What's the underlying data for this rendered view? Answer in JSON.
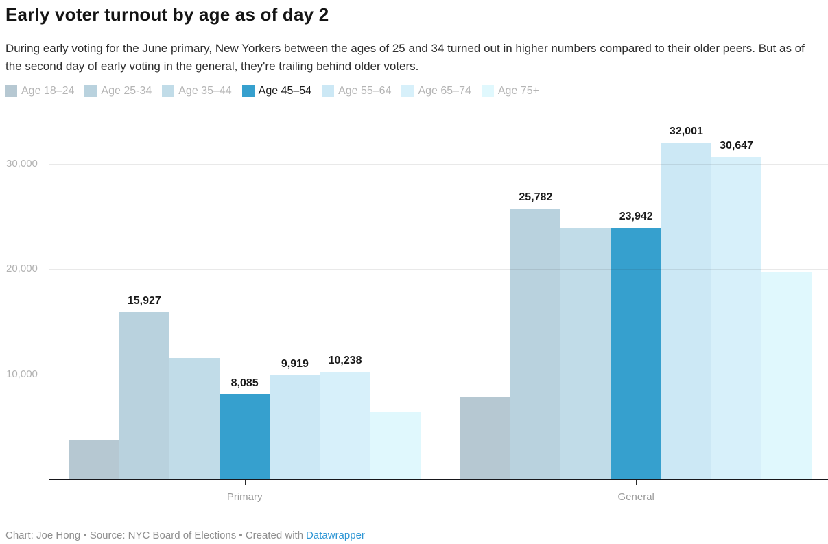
{
  "header": {
    "title": "Early voter turnout by age as of day 2",
    "subtitle": "During early voting for the June primary, New Yorkers between the ages of 25 and 34 turned out in higher numbers compared to their older peers. But as of the second day of early voting in the general, they're trailing behind older voters."
  },
  "chart_data": {
    "type": "bar",
    "grouped": true,
    "categories": [
      "Primary",
      "General"
    ],
    "series": [
      {
        "name": "Age 18–24",
        "color": "#b6c8d2",
        "values": [
          3800,
          7900
        ],
        "labels": [
          null,
          null
        ],
        "highlighted": false
      },
      {
        "name": "Age 25-34",
        "color": "#b9d2de",
        "values": [
          15927,
          25782
        ],
        "labels": [
          "15,927",
          "25,782"
        ],
        "highlighted": false
      },
      {
        "name": "Age 35–44",
        "color": "#c1dce8",
        "values": [
          11570,
          23900
        ],
        "labels": [
          null,
          null
        ],
        "highlighted": false
      },
      {
        "name": "Age 45–54",
        "color": "#36a0ce",
        "values": [
          8085,
          23942
        ],
        "labels": [
          "8,085",
          "23,942"
        ],
        "highlighted": true
      },
      {
        "name": "Age 55–64",
        "color": "#cce8f5",
        "values": [
          9919,
          32001
        ],
        "labels": [
          "9,919",
          "32,001"
        ],
        "highlighted": false
      },
      {
        "name": "Age 65–74",
        "color": "#d7f0fa",
        "values": [
          10238,
          30647
        ],
        "labels": [
          "10,238",
          "30,647"
        ],
        "highlighted": false
      },
      {
        "name": "Age 75+",
        "color": "#e0f8fd",
        "values": [
          6400,
          19800
        ],
        "labels": [
          null,
          null
        ],
        "highlighted": false
      }
    ],
    "ylabel": "",
    "xlabel": "",
    "ylim": [
      0,
      34000
    ],
    "y_ticks": [
      10000,
      20000,
      30000
    ],
    "y_tick_labels": [
      "10,000",
      "20,000",
      "30,000"
    ],
    "grid": true,
    "legend_position": "top",
    "accent_color": "#36a0ce"
  },
  "footer": {
    "credit": "Chart: Joe Hong • Source: NYC Board of Elections • Created with",
    "link_label": "Datawrapper"
  }
}
